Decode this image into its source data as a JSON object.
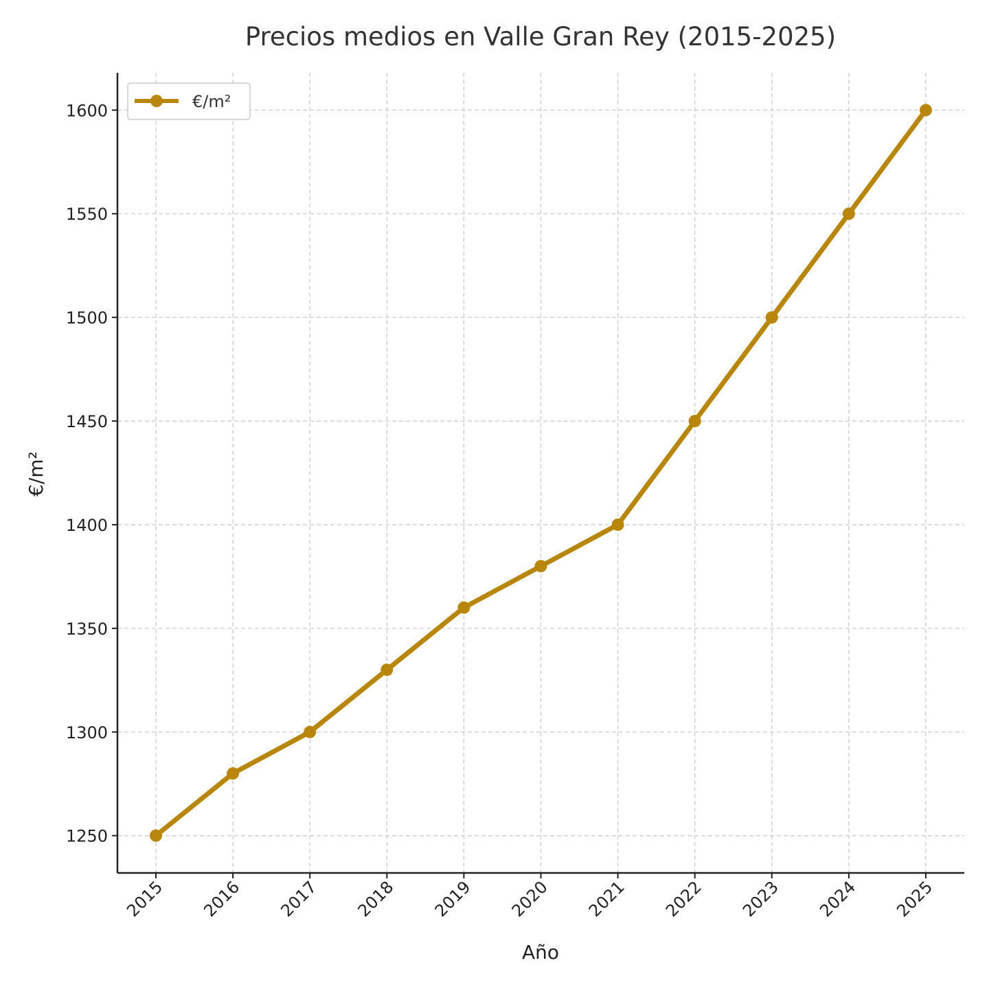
{
  "chart_data": {
    "type": "line",
    "title": "Precios medios en Valle Gran Rey (2015-2025)",
    "xlabel": "Año",
    "ylabel": "€/m²",
    "categories": [
      "2015",
      "2016",
      "2017",
      "2018",
      "2019",
      "2020",
      "2021",
      "2022",
      "2023",
      "2024",
      "2025"
    ],
    "series": [
      {
        "name": "€/m²",
        "values": [
          1250,
          1280,
          1300,
          1330,
          1360,
          1380,
          1400,
          1450,
          1500,
          1550,
          1600
        ],
        "color": "#b8860b"
      }
    ],
    "yticks": [
      1250,
      1300,
      1350,
      1400,
      1450,
      1500,
      1550,
      1600
    ],
    "ylim": [
      1232,
      1618
    ],
    "grid": true,
    "legend_position": "top-left",
    "xtick_rotation": "45deg"
  }
}
